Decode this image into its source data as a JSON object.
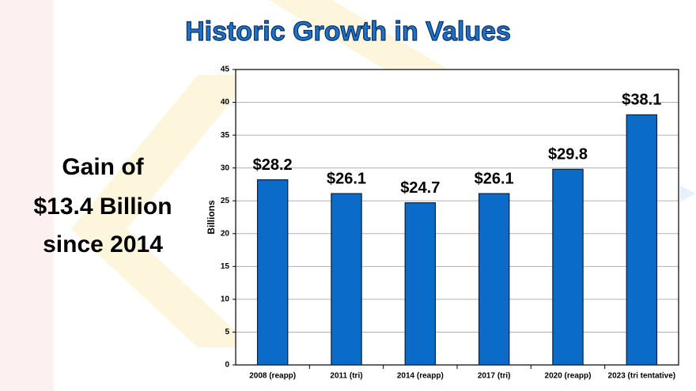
{
  "chart_data": {
    "type": "bar",
    "title": "Historic Growth in Values",
    "annotation": [
      "Gain of",
      "$13.4 Billion",
      "since 2014"
    ],
    "y_label": "Billions",
    "categories": [
      "2008 (reapp)",
      "2011 (tri)",
      "2014 (reapp)",
      "2017 (tri)",
      "2020 (reapp)",
      "2023 (tri tentative)"
    ],
    "values": [
      28.2,
      26.1,
      24.7,
      26.1,
      29.8,
      38.1
    ],
    "value_labels": [
      "$28.2",
      "$26.1",
      "$24.7",
      "$26.1",
      "$29.8",
      "$38.1"
    ],
    "color": "#0a6bc8",
    "ylim": [
      0,
      45
    ],
    "yticks": [
      0,
      5,
      10,
      15,
      20,
      25,
      30,
      35,
      40,
      45
    ],
    "grid": true
  }
}
